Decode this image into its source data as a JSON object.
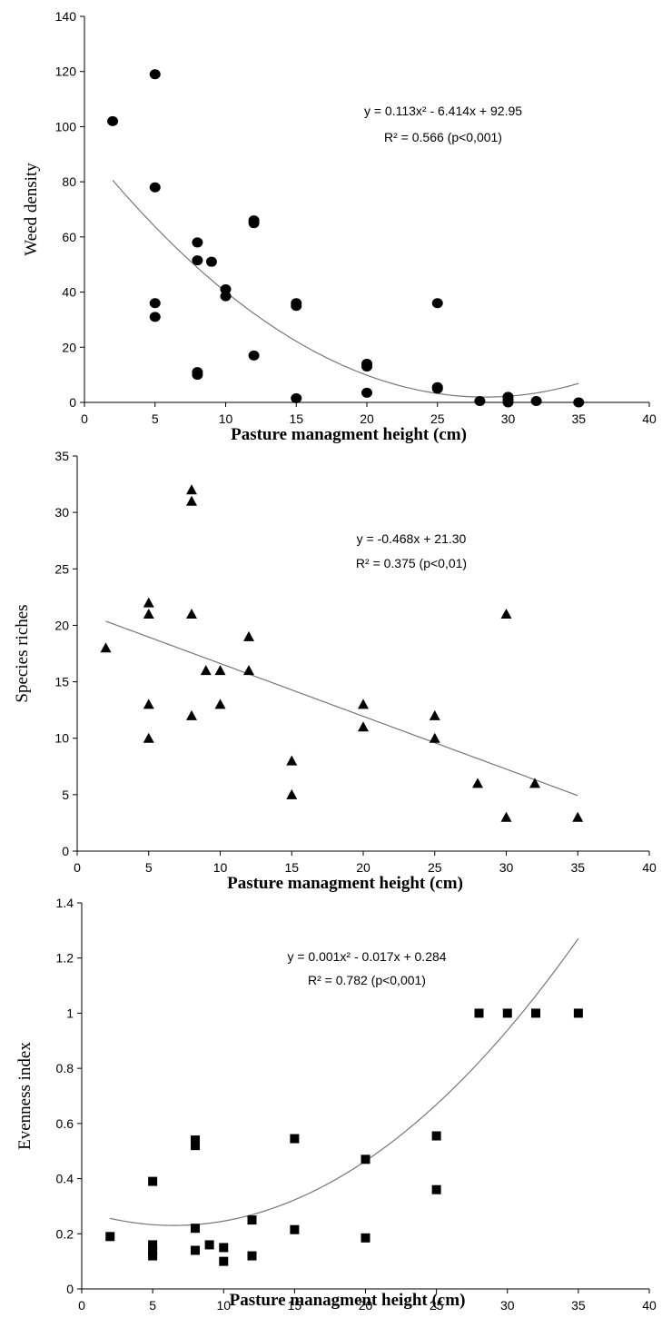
{
  "chart_data": [
    {
      "type": "scatter",
      "marker": "circle",
      "ylabel": "Weed density",
      "xlabel": "Pasture managment height (cm)",
      "xlim": [
        0,
        40
      ],
      "ylim": [
        0,
        140
      ],
      "xticks": [
        "0",
        "5",
        "10",
        "15",
        "20",
        "25",
        "30",
        "35",
        "40"
      ],
      "yticks": [
        "0",
        "20",
        "40",
        "60",
        "80",
        "100",
        "120",
        "140"
      ],
      "equation": "y = 0.113x² - 6.414x + 92.95",
      "r2": "R² = 0.566 (p<0,001)",
      "fit": {
        "kind": "quadratic",
        "coef": [
          0.113,
          -6.414,
          92.95
        ],
        "x_range": [
          2,
          35
        ]
      },
      "points": [
        [
          2,
          102
        ],
        [
          5,
          119
        ],
        [
          5,
          78
        ],
        [
          5,
          36
        ],
        [
          5,
          31
        ],
        [
          8,
          58
        ],
        [
          8,
          51.5
        ],
        [
          8,
          11
        ],
        [
          8,
          10
        ],
        [
          9,
          51
        ],
        [
          10,
          41
        ],
        [
          10,
          38.5
        ],
        [
          12,
          66
        ],
        [
          12,
          65
        ],
        [
          12,
          17
        ],
        [
          15,
          36
        ],
        [
          15,
          35
        ],
        [
          15,
          1.5
        ],
        [
          20,
          14
        ],
        [
          20,
          13
        ],
        [
          20,
          3.5
        ],
        [
          25,
          36
        ],
        [
          25,
          5.5
        ],
        [
          25,
          5
        ],
        [
          28,
          0.5
        ],
        [
          30,
          2
        ],
        [
          30,
          1
        ],
        [
          30,
          0
        ],
        [
          32,
          0.5
        ],
        [
          35,
          0
        ]
      ]
    },
    {
      "type": "scatter",
      "marker": "triangle",
      "ylabel": "Species riches",
      "xlabel": "Pasture managment height (cm)",
      "xlim": [
        0,
        40
      ],
      "ylim": [
        0,
        35
      ],
      "xticks": [
        "0",
        "5",
        "10",
        "15",
        "20",
        "25",
        "30",
        "35",
        "40"
      ],
      "yticks": [
        "0",
        "5",
        "10",
        "15",
        "20",
        "25",
        "30",
        "35"
      ],
      "equation": "y = -0.468x + 21.30",
      "r2": "R² = 0.375 (p<0,01)",
      "fit": {
        "kind": "linear",
        "coef": [
          0,
          -0.468,
          21.3
        ],
        "x_range": [
          2,
          35
        ]
      },
      "points": [
        [
          2,
          18
        ],
        [
          5,
          22
        ],
        [
          5,
          21
        ],
        [
          5,
          13
        ],
        [
          5,
          10
        ],
        [
          8,
          32
        ],
        [
          8,
          31
        ],
        [
          8,
          21
        ],
        [
          8,
          12
        ],
        [
          9,
          16
        ],
        [
          10,
          16
        ],
        [
          10,
          13
        ],
        [
          12,
          19
        ],
        [
          12,
          16
        ],
        [
          15,
          8
        ],
        [
          15,
          5
        ],
        [
          20,
          13
        ],
        [
          20,
          11
        ],
        [
          25,
          12
        ],
        [
          25,
          10
        ],
        [
          28,
          6
        ],
        [
          30,
          21
        ],
        [
          30,
          3
        ],
        [
          32,
          6
        ],
        [
          35,
          3
        ]
      ]
    },
    {
      "type": "scatter",
      "marker": "square",
      "ylabel": "Evenness index",
      "xlabel": "Pasture managment height (cm)",
      "xlim": [
        0,
        40
      ],
      "ylim": [
        0,
        1.4
      ],
      "xticks": [
        "0",
        "5",
        "10",
        "15",
        "20",
        "25",
        "30",
        "35",
        "40"
      ],
      "yticks": [
        "0",
        "0.2",
        "0.4",
        "0.6",
        "0.8",
        "1",
        "1.2",
        "1.4"
      ],
      "equation": "y = 0.001x² - 0.017x + 0.284",
      "r2": "R² = 0.782 (p<0,001)",
      "fit": {
        "kind": "quadratic",
        "coef": [
          0.00128,
          -0.0166,
          0.284
        ],
        "x_range": [
          2,
          35
        ]
      },
      "points": [
        [
          2,
          0.19
        ],
        [
          5,
          0.39
        ],
        [
          5,
          0.16
        ],
        [
          5,
          0.14
        ],
        [
          5,
          0.12
        ],
        [
          8,
          0.54
        ],
        [
          8,
          0.52
        ],
        [
          8,
          0.22
        ],
        [
          8,
          0.14
        ],
        [
          9,
          0.16
        ],
        [
          10,
          0.15
        ],
        [
          10,
          0.1
        ],
        [
          12,
          0.25
        ],
        [
          12,
          0.12
        ],
        [
          15,
          0.545
        ],
        [
          15,
          0.215
        ],
        [
          20,
          0.47
        ],
        [
          20,
          0.185
        ],
        [
          25,
          0.555
        ],
        [
          25,
          0.36
        ],
        [
          28,
          1
        ],
        [
          30,
          1
        ],
        [
          32,
          1
        ],
        [
          35,
          1
        ]
      ]
    }
  ]
}
